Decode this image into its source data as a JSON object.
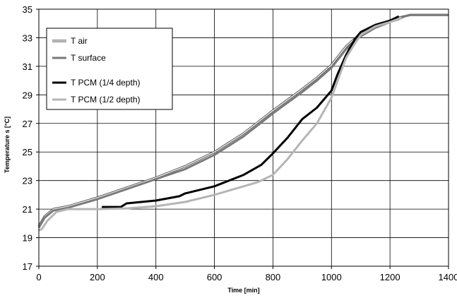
{
  "chart_data": {
    "type": "line",
    "xlabel": "Time [min]",
    "ylabel": "Temperature s [°C]",
    "xlim": [
      0,
      1400
    ],
    "ylim": [
      17,
      35
    ],
    "x_ticks": [
      0,
      200,
      400,
      600,
      800,
      1000,
      1200,
      1400
    ],
    "y_ticks": [
      17,
      19,
      21,
      23,
      25,
      27,
      29,
      31,
      33,
      35
    ],
    "grid": true,
    "legend_position": "top-left",
    "series": [
      {
        "name": "T air",
        "style": "outline",
        "color": "#555555",
        "x": [
          0,
          20,
          50,
          100,
          200,
          300,
          400,
          500,
          600,
          700,
          800,
          900,
          950,
          1000,
          1050,
          1100,
          1150,
          1200,
          1230,
          1250,
          1270,
          1290,
          1400
        ],
        "y": [
          19.8,
          20.5,
          21.0,
          21.2,
          21.8,
          22.5,
          23.2,
          24.0,
          25.0,
          26.3,
          27.9,
          29.4,
          30.2,
          31.1,
          32.4,
          33.3,
          33.8,
          34.2,
          34.4,
          34.5,
          34.6,
          34.6,
          34.6
        ]
      },
      {
        "name": "T surface",
        "style": "thick",
        "color": "#7a7a7a",
        "x": [
          0,
          20,
          50,
          100,
          200,
          300,
          400,
          500,
          600,
          700,
          800,
          900,
          950,
          1000,
          1050,
          1100,
          1150,
          1200,
          1230,
          1250,
          1270,
          1290,
          1400
        ],
        "y": [
          19.7,
          20.4,
          20.9,
          21.1,
          21.7,
          22.4,
          23.1,
          23.8,
          24.8,
          26.1,
          27.7,
          29.2,
          30.0,
          30.9,
          32.2,
          33.1,
          33.7,
          34.1,
          34.3,
          34.5,
          34.6,
          34.6,
          34.6
        ]
      },
      {
        "name": "T PCM (1/4 depth)",
        "style": "thick",
        "color": "#000000",
        "x": [
          215,
          280,
          300,
          400,
          480,
          500,
          600,
          700,
          760,
          800,
          850,
          900,
          950,
          1000,
          1020,
          1050,
          1080,
          1100,
          1150,
          1200,
          1230
        ],
        "y": [
          21.15,
          21.15,
          21.4,
          21.6,
          21.9,
          22.1,
          22.6,
          23.4,
          24.1,
          24.9,
          26.0,
          27.3,
          28.1,
          29.3,
          30.4,
          31.8,
          32.9,
          33.4,
          33.9,
          34.2,
          34.5
        ]
      },
      {
        "name": "T PCM (1/2 depth)",
        "style": "thick",
        "color": "#b5b5b5",
        "x": [
          0,
          10,
          30,
          60,
          100,
          200,
          300,
          400,
          500,
          600,
          650,
          700,
          750,
          800,
          850,
          900,
          950,
          1000,
          1030,
          1050,
          1080,
          1100,
          1150,
          1200,
          1240
        ],
        "y": [
          19.5,
          19.6,
          20.2,
          20.8,
          21.0,
          21.0,
          21.05,
          21.2,
          21.5,
          22.0,
          22.3,
          22.6,
          22.9,
          23.4,
          24.5,
          25.8,
          27.0,
          28.8,
          30.5,
          31.6,
          32.6,
          33.2,
          33.8,
          34.1,
          34.4
        ]
      }
    ]
  }
}
